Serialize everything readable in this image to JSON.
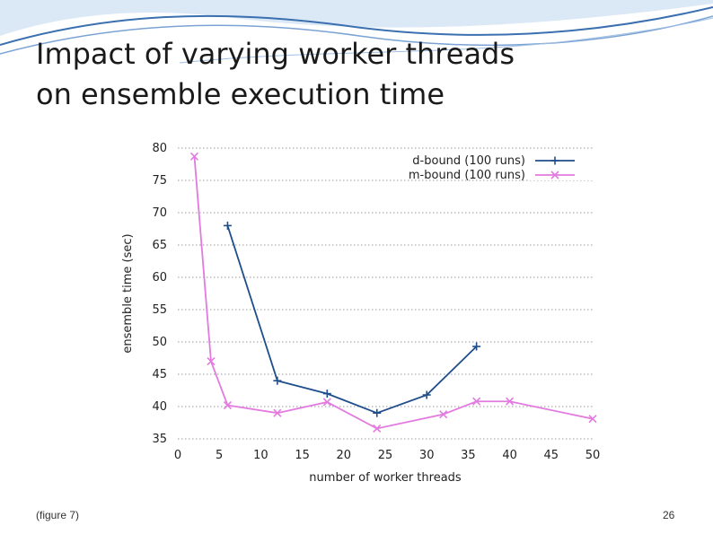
{
  "slide": {
    "title_line1": "Impact of varying worker threads",
    "title_line2": "on ensemble execution time",
    "caption": "(figure 7)",
    "page_number": "26"
  },
  "colors": {
    "d_bound": "#1f4e8c",
    "m_bound": "#e27ae0",
    "grid": "#9a9a9a",
    "wave": "#3a6fb0"
  },
  "chart_data": {
    "type": "line",
    "xlabel": "number of worker threads",
    "ylabel": "ensemble time (sec)",
    "xlim": [
      0,
      50
    ],
    "ylim": [
      35,
      80
    ],
    "xticks": [
      0,
      5,
      10,
      15,
      20,
      25,
      30,
      35,
      40,
      45,
      50
    ],
    "yticks": [
      35,
      40,
      45,
      50,
      55,
      60,
      65,
      70,
      75,
      80
    ],
    "grid": "horizontal dotted",
    "legend_position": "top-right",
    "series": [
      {
        "name": "d-bound (100 runs)",
        "marker": "+",
        "x": [
          6,
          12,
          18,
          24,
          30,
          36
        ],
        "y": [
          68,
          44,
          42,
          39,
          41.8,
          49.3
        ]
      },
      {
        "name": "m-bound (100 runs)",
        "marker": "x",
        "x": [
          2,
          4,
          6,
          12,
          18,
          24,
          32,
          36,
          40,
          50
        ],
        "y": [
          78.7,
          47,
          40.2,
          39,
          40.7,
          36.6,
          38.8,
          40.8,
          40.8,
          38.1
        ]
      }
    ]
  }
}
